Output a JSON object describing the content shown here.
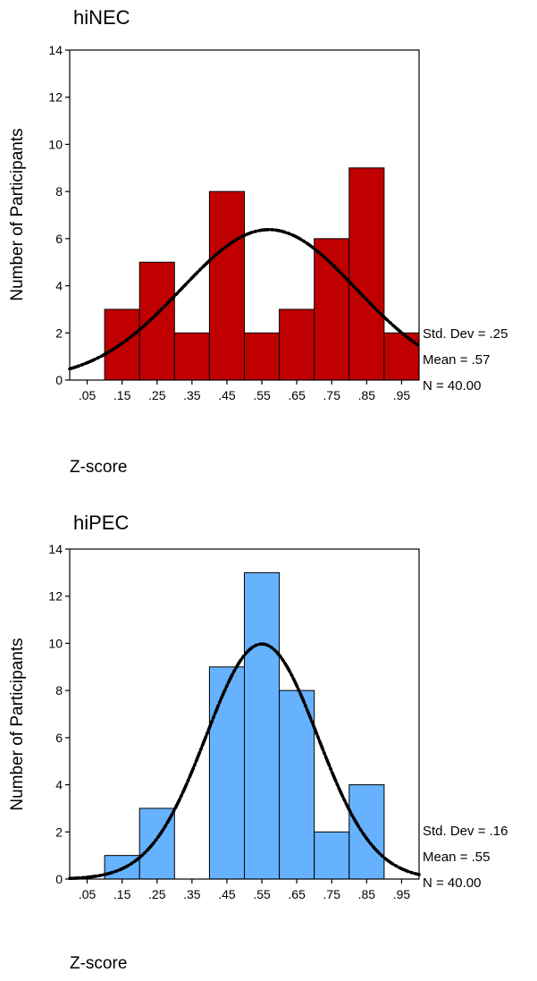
{
  "chart_data": [
    {
      "type": "bar",
      "title": "hiNEC",
      "xlabel": "Z-score",
      "ylabel": "Number of Participants",
      "categories": [
        ".05",
        ".15",
        ".25",
        ".35",
        ".45",
        ".55",
        ".65",
        ".75",
        ".85",
        ".95"
      ],
      "bin_centers": [
        0.05,
        0.15,
        0.25,
        0.35,
        0.45,
        0.55,
        0.65,
        0.75,
        0.85,
        0.95
      ],
      "values": [
        0,
        3,
        5,
        2,
        8,
        2,
        3,
        6,
        9,
        2
      ],
      "yticks": [
        "0",
        "2",
        "4",
        "6",
        "8",
        "10",
        "12",
        "14"
      ],
      "ylim": [
        0,
        14
      ],
      "xlim": [
        0.0,
        1.0
      ],
      "bar_color": "#c00000",
      "curve": {
        "mean": 0.57,
        "sd": 0.25,
        "n": 40,
        "bin_width": 0.1
      },
      "stats": [
        "Std. Dev = .25",
        "Mean = .57",
        "N = 40.00"
      ]
    },
    {
      "type": "bar",
      "title": "hiPEC",
      "xlabel": "Z-score",
      "ylabel": "Number of Participants",
      "categories": [
        ".05",
        ".15",
        ".25",
        ".35",
        ".45",
        ".55",
        ".65",
        ".75",
        ".85",
        ".95"
      ],
      "bin_centers": [
        0.05,
        0.15,
        0.25,
        0.35,
        0.45,
        0.55,
        0.65,
        0.75,
        0.85,
        0.95
      ],
      "values": [
        0,
        1,
        3,
        0,
        9,
        13,
        8,
        2,
        4,
        0
      ],
      "yticks": [
        "0",
        "2",
        "4",
        "6",
        "8",
        "10",
        "12",
        "14"
      ],
      "ylim": [
        0,
        14
      ],
      "xlim": [
        0.0,
        1.0
      ],
      "bar_color": "#66b2ff",
      "curve": {
        "mean": 0.55,
        "sd": 0.16,
        "n": 40,
        "bin_width": 0.1
      },
      "stats": [
        "Std. Dev = .16",
        "Mean = .55",
        "N = 40.00"
      ]
    }
  ]
}
